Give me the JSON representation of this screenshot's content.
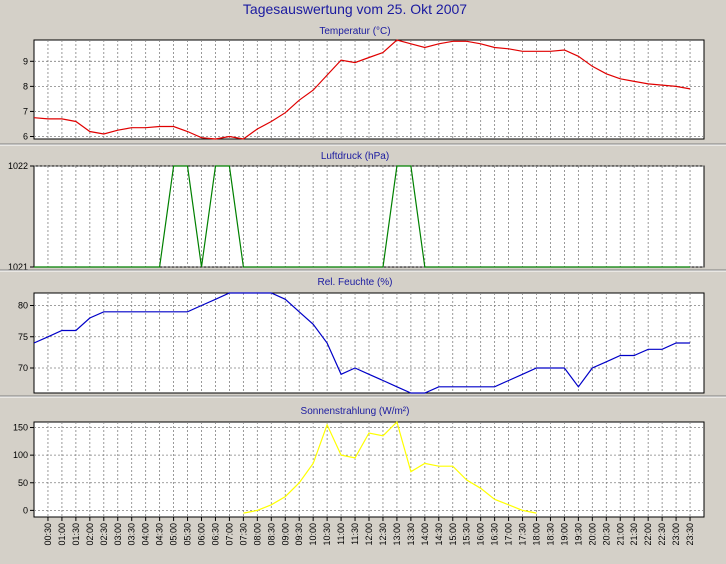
{
  "title": "Tagesauswertung vom 25. Okt 2007",
  "chart_data": [
    {
      "type": "line",
      "title": "Temperatur (°C)",
      "color": "#e00000",
      "ylim": [
        5.9,
        9.85
      ],
      "yticks": [
        6,
        7,
        8,
        9
      ],
      "x": [
        "00:00",
        "00:30",
        "01:00",
        "01:30",
        "02:00",
        "02:30",
        "03:00",
        "03:30",
        "04:00",
        "04:30",
        "05:00",
        "05:30",
        "06:00",
        "06:30",
        "07:00",
        "07:30",
        "08:00",
        "08:30",
        "09:00",
        "09:30",
        "10:00",
        "10:30",
        "11:00",
        "11:30",
        "12:00",
        "12:30",
        "13:00",
        "13:30",
        "14:00",
        "14:30",
        "15:00",
        "15:30",
        "16:00",
        "16:30",
        "17:00",
        "17:30",
        "18:00",
        "18:30",
        "19:00",
        "19:30",
        "20:00",
        "20:30",
        "21:00",
        "21:30",
        "22:00",
        "22:30",
        "23:00",
        "23:30"
      ],
      "values": [
        6.75,
        6.7,
        6.7,
        6.6,
        6.2,
        6.1,
        6.25,
        6.35,
        6.35,
        6.4,
        6.4,
        6.2,
        5.95,
        5.9,
        6.0,
        5.9,
        6.3,
        6.6,
        6.95,
        7.45,
        7.85,
        8.45,
        9.05,
        8.95,
        9.15,
        9.35,
        9.85,
        9.7,
        9.55,
        9.7,
        9.8,
        9.8,
        9.7,
        9.55,
        9.5,
        9.4,
        9.4,
        9.4,
        9.45,
        9.2,
        8.8,
        8.5,
        8.3,
        8.2,
        8.1,
        8.05,
        8.0,
        7.9
      ]
    },
    {
      "type": "line",
      "title": "Luftdruck (hPa)",
      "color": "#008000",
      "ylim": [
        1021,
        1022
      ],
      "yticks": [
        1021,
        1022
      ],
      "x": [
        "00:00",
        "00:30",
        "01:00",
        "01:30",
        "02:00",
        "02:30",
        "03:00",
        "03:30",
        "04:00",
        "04:30",
        "05:00",
        "05:30",
        "06:00",
        "06:30",
        "07:00",
        "07:30",
        "08:00",
        "08:30",
        "09:00",
        "09:30",
        "10:00",
        "10:30",
        "11:00",
        "11:30",
        "12:00",
        "12:30",
        "13:00",
        "13:30",
        "14:00",
        "14:30",
        "15:00",
        "15:30",
        "16:00",
        "16:30",
        "17:00",
        "17:30",
        "18:00",
        "18:30",
        "19:00",
        "19:30",
        "20:00",
        "20:30",
        "21:00",
        "21:30",
        "22:00",
        "22:30",
        "23:00",
        "23:30"
      ],
      "values": [
        1021,
        1021,
        1021,
        1021,
        1021,
        1021,
        1021,
        1021,
        1021,
        1021,
        1022,
        1022,
        1021,
        1022,
        1022,
        1021,
        1021,
        1021,
        1021,
        1021,
        1021,
        1021,
        1021,
        1021,
        1021,
        1021,
        1022,
        1022,
        1021,
        1021,
        1021,
        1021,
        1021,
        1021,
        1021,
        1021,
        1021,
        1021,
        1021,
        1021,
        1021,
        1021,
        1021,
        1021,
        1021,
        1021,
        1021,
        1021
      ]
    },
    {
      "type": "line",
      "title": "Rel. Feuchte (%)",
      "color": "#0000c8",
      "ylim": [
        66,
        82
      ],
      "yticks": [
        70,
        75,
        80
      ],
      "x": [
        "00:00",
        "00:30",
        "01:00",
        "01:30",
        "02:00",
        "02:30",
        "03:00",
        "03:30",
        "04:00",
        "04:30",
        "05:00",
        "05:30",
        "06:00",
        "06:30",
        "07:00",
        "07:30",
        "08:00",
        "08:30",
        "09:00",
        "09:30",
        "10:00",
        "10:30",
        "11:00",
        "11:30",
        "12:00",
        "12:30",
        "13:00",
        "13:30",
        "14:00",
        "14:30",
        "15:00",
        "15:30",
        "16:00",
        "16:30",
        "17:00",
        "17:30",
        "18:00",
        "18:30",
        "19:00",
        "19:30",
        "20:00",
        "20:30",
        "21:00",
        "21:30",
        "22:00",
        "22:30",
        "23:00",
        "23:30"
      ],
      "values": [
        74,
        75,
        76,
        76,
        78,
        79,
        79,
        79,
        79,
        79,
        79,
        79,
        80,
        81,
        82,
        82,
        82,
        82,
        81,
        79,
        77,
        74,
        69,
        70,
        69,
        68,
        67,
        66,
        66,
        67,
        67,
        67,
        67,
        67,
        68,
        69,
        70,
        70,
        70,
        67,
        70,
        71,
        72,
        72,
        73,
        73,
        74,
        74
      ]
    },
    {
      "type": "line",
      "title": "Sonnenstrahlung (W/m²)",
      "color": "#ffff00",
      "ylim": [
        -12,
        160
      ],
      "yticks": [
        0,
        50,
        100,
        150
      ],
      "x": [
        "00:00",
        "00:30",
        "01:00",
        "01:30",
        "02:00",
        "02:30",
        "03:00",
        "03:30",
        "04:00",
        "04:30",
        "05:00",
        "05:30",
        "06:00",
        "06:30",
        "07:00",
        "07:30",
        "08:00",
        "08:30",
        "09:00",
        "09:30",
        "10:00",
        "10:30",
        "11:00",
        "11:30",
        "12:00",
        "12:30",
        "13:00",
        "13:30",
        "14:00",
        "14:30",
        "15:00",
        "15:30",
        "16:00",
        "16:30",
        "17:00",
        "17:30",
        "18:00",
        "18:30",
        "19:00",
        "19:30",
        "20:00",
        "20:30",
        "21:00",
        "21:30",
        "22:00",
        "22:30",
        "23:00",
        "23:30"
      ],
      "values": [
        null,
        null,
        null,
        null,
        null,
        null,
        null,
        null,
        null,
        null,
        null,
        null,
        null,
        null,
        null,
        -5,
        0,
        10,
        25,
        50,
        85,
        155,
        100,
        95,
        140,
        135,
        160,
        70,
        85,
        80,
        80,
        55,
        40,
        20,
        10,
        0,
        -5,
        null,
        null,
        null,
        null,
        null,
        null,
        null,
        null,
        null,
        null,
        null
      ]
    }
  ],
  "xticks": [
    "00:30",
    "01:00",
    "01:30",
    "02:00",
    "02:30",
    "03:00",
    "03:30",
    "04:00",
    "04:30",
    "05:00",
    "05:30",
    "06:00",
    "06:30",
    "07:00",
    "07:30",
    "08:00",
    "08:30",
    "09:00",
    "09:30",
    "10:00",
    "10:30",
    "11:00",
    "11:30",
    "12:00",
    "12:30",
    "13:00",
    "13:30",
    "14:00",
    "14:30",
    "15:00",
    "15:30",
    "16:00",
    "16:30",
    "17:00",
    "17:30",
    "18:00",
    "18:30",
    "19:00",
    "19:30",
    "20:00",
    "20:30",
    "21:00",
    "21:30",
    "22:00",
    "22:30",
    "23:00",
    "23:30"
  ]
}
